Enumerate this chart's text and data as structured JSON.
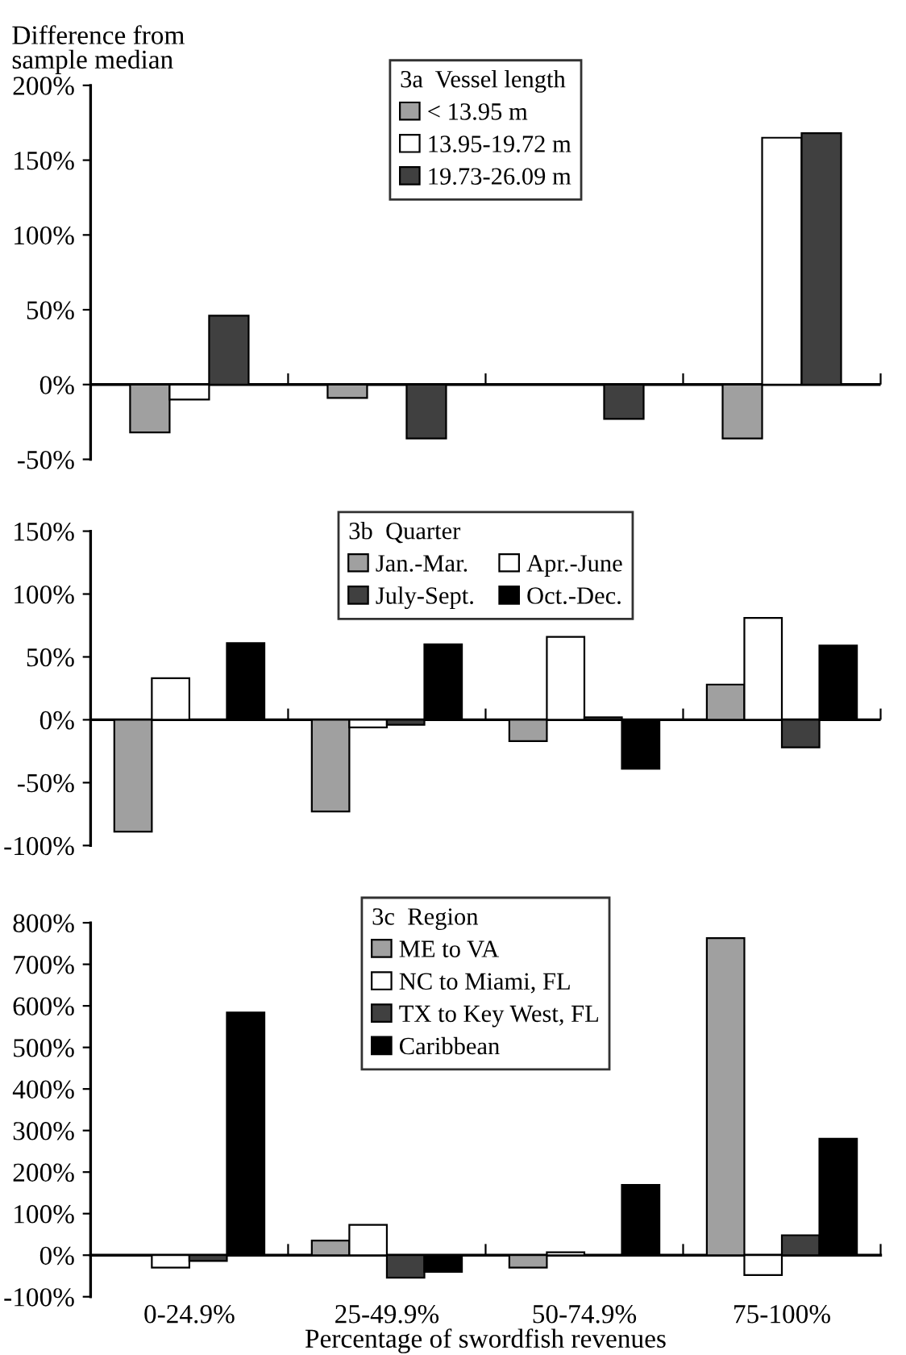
{
  "chart_data": [
    {
      "type": "bar",
      "ylabel": "Difference from\nsample median",
      "legend_title": "3a  Vessel length",
      "categories": [
        null,
        null,
        null,
        null
      ],
      "series": [
        {
          "name": "< 13.95 m",
          "color": "#a0a0a0",
          "values": [
            -32,
            -9,
            null,
            -36
          ]
        },
        {
          "name": "13.95-19.72 m",
          "color": "#ffffff",
          "values": [
            -10,
            null,
            null,
            165
          ]
        },
        {
          "name": "19.73-26.09 m",
          "color": "#404040",
          "values": [
            46,
            -36,
            -23,
            168
          ]
        }
      ],
      "ylim": [
        -50,
        200
      ],
      "yticks": [
        {
          "value": -50,
          "label": "-50%"
        },
        {
          "value": 0,
          "label": "0%"
        },
        {
          "value": 50,
          "label": "50%"
        },
        {
          "value": 100,
          "label": "100%"
        },
        {
          "value": 150,
          "label": "150%"
        },
        {
          "value": 200,
          "label": "200%"
        }
      ],
      "ref_lines": [
        {
          "axis": "y",
          "value": 0
        }
      ],
      "legend": "top",
      "grid": false,
      "tick_labels": "y"
    },
    {
      "type": "bar",
      "legend_title": "3b  Quarter",
      "categories": [
        null,
        null,
        null,
        null
      ],
      "series": [
        {
          "name": "Jan.-Mar.",
          "color": "#a0a0a0",
          "values": [
            -89,
            -73,
            -17,
            28
          ]
        },
        {
          "name": "Apr.-June",
          "color": "#ffffff",
          "values": [
            33,
            -6,
            66,
            81
          ]
        },
        {
          "name": "July-Sept.",
          "color": "#404040",
          "values": [
            null,
            -4,
            2,
            -22
          ]
        },
        {
          "name": "Oct.-Dec.",
          "color": "#000000",
          "values": [
            61,
            60,
            -39,
            59
          ]
        }
      ],
      "ylim": [
        -100,
        150
      ],
      "yticks": [
        {
          "value": -100,
          "label": "-100%"
        },
        {
          "value": -50,
          "label": "-50%"
        },
        {
          "value": 0,
          "label": "0%"
        },
        {
          "value": 50,
          "label": "50%"
        },
        {
          "value": 100,
          "label": "100%"
        },
        {
          "value": 150,
          "label": "150%"
        }
      ],
      "ref_lines": [
        {
          "axis": "y",
          "value": 0
        }
      ],
      "legend": "top",
      "grid": false,
      "tick_labels": "y"
    },
    {
      "type": "bar",
      "xlabel": "Percentage of swordfish revenues",
      "legend_title": "3c  Region",
      "categories": [
        "0-24.9%",
        "25-49.9%",
        "50-74.9%",
        "75-100%"
      ],
      "series": [
        {
          "name": "ME to VA",
          "color": "#a0a0a0",
          "values": [
            null,
            35,
            -30,
            763
          ]
        },
        {
          "name": "NC to Miami, FL",
          "color": "#ffffff",
          "values": [
            -30,
            73,
            7,
            -48
          ]
        },
        {
          "name": "TX to Key West, FL",
          "color": "#404040",
          "values": [
            -14,
            -54,
            null,
            48
          ]
        },
        {
          "name": "Caribbean",
          "color": "#000000",
          "values": [
            584,
            -40,
            169,
            280
          ]
        }
      ],
      "ylim": [
        -100,
        800
      ],
      "yticks": [
        {
          "value": -100,
          "label": "-100%"
        },
        {
          "value": 0,
          "label": "0%"
        },
        {
          "value": 100,
          "label": "100%"
        },
        {
          "value": 200,
          "label": "200%"
        },
        {
          "value": 300,
          "label": "300%"
        },
        {
          "value": 400,
          "label": "400%"
        },
        {
          "value": 500,
          "label": "500%"
        },
        {
          "value": 600,
          "label": "600%"
        },
        {
          "value": 700,
          "label": "700%"
        },
        {
          "value": 800,
          "label": "800%"
        }
      ],
      "legend": "top",
      "grid": false
    }
  ]
}
